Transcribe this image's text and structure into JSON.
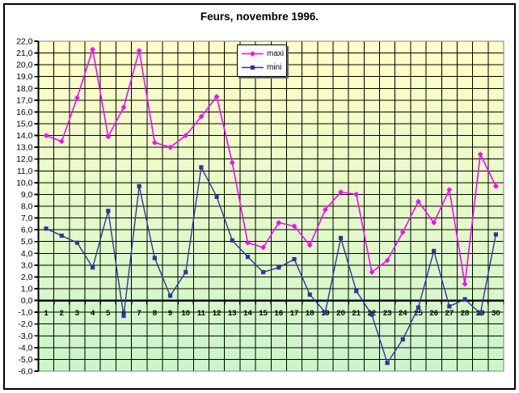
{
  "title": "Feurs, novembre 1996.",
  "legend": {
    "position": "top-center"
  },
  "chart_data": {
    "type": "line",
    "title": "Feurs, novembre 1996.",
    "x": [
      1,
      2,
      3,
      4,
      5,
      6,
      7,
      8,
      9,
      10,
      11,
      12,
      13,
      14,
      15,
      16,
      17,
      18,
      19,
      20,
      21,
      22,
      23,
      24,
      25,
      26,
      27,
      28,
      29,
      30
    ],
    "series": [
      {
        "name": "maxi",
        "color": "#FF00FF",
        "marker": "diamond",
        "values": [
          14.0,
          13.5,
          17.2,
          21.3,
          13.9,
          16.4,
          21.2,
          13.4,
          13.0,
          14.0,
          15.6,
          17.3,
          11.7,
          4.9,
          4.5,
          6.6,
          6.3,
          4.7,
          7.7,
          9.2,
          9.0,
          2.4,
          3.4,
          5.8,
          8.4,
          6.6,
          9.4,
          1.4,
          12.4,
          9.7
        ]
      },
      {
        "name": "mini",
        "color": "#333399",
        "marker": "square",
        "values": [
          6.1,
          5.5,
          4.9,
          2.8,
          7.6,
          -1.3,
          9.7,
          3.6,
          0.4,
          2.4,
          11.3,
          8.8,
          5.1,
          3.7,
          2.4,
          2.8,
          3.5,
          0.5,
          -1.0,
          5.3,
          0.8,
          -1.2,
          -5.3,
          -3.3,
          -0.6,
          4.2,
          -0.5,
          0.1,
          -1.1,
          5.6
        ]
      }
    ],
    "ylim": [
      -6,
      22
    ],
    "ytick_step": 1.0,
    "ytick_format": "comma-decimal",
    "xlabel": "",
    "ylabel": "",
    "grid": true,
    "legend_position": "top-center",
    "plot_bg_gradient": [
      "#FFFFC6",
      "#C9F6C9"
    ],
    "grid_color": "#000000",
    "axis_color": "#000000"
  }
}
